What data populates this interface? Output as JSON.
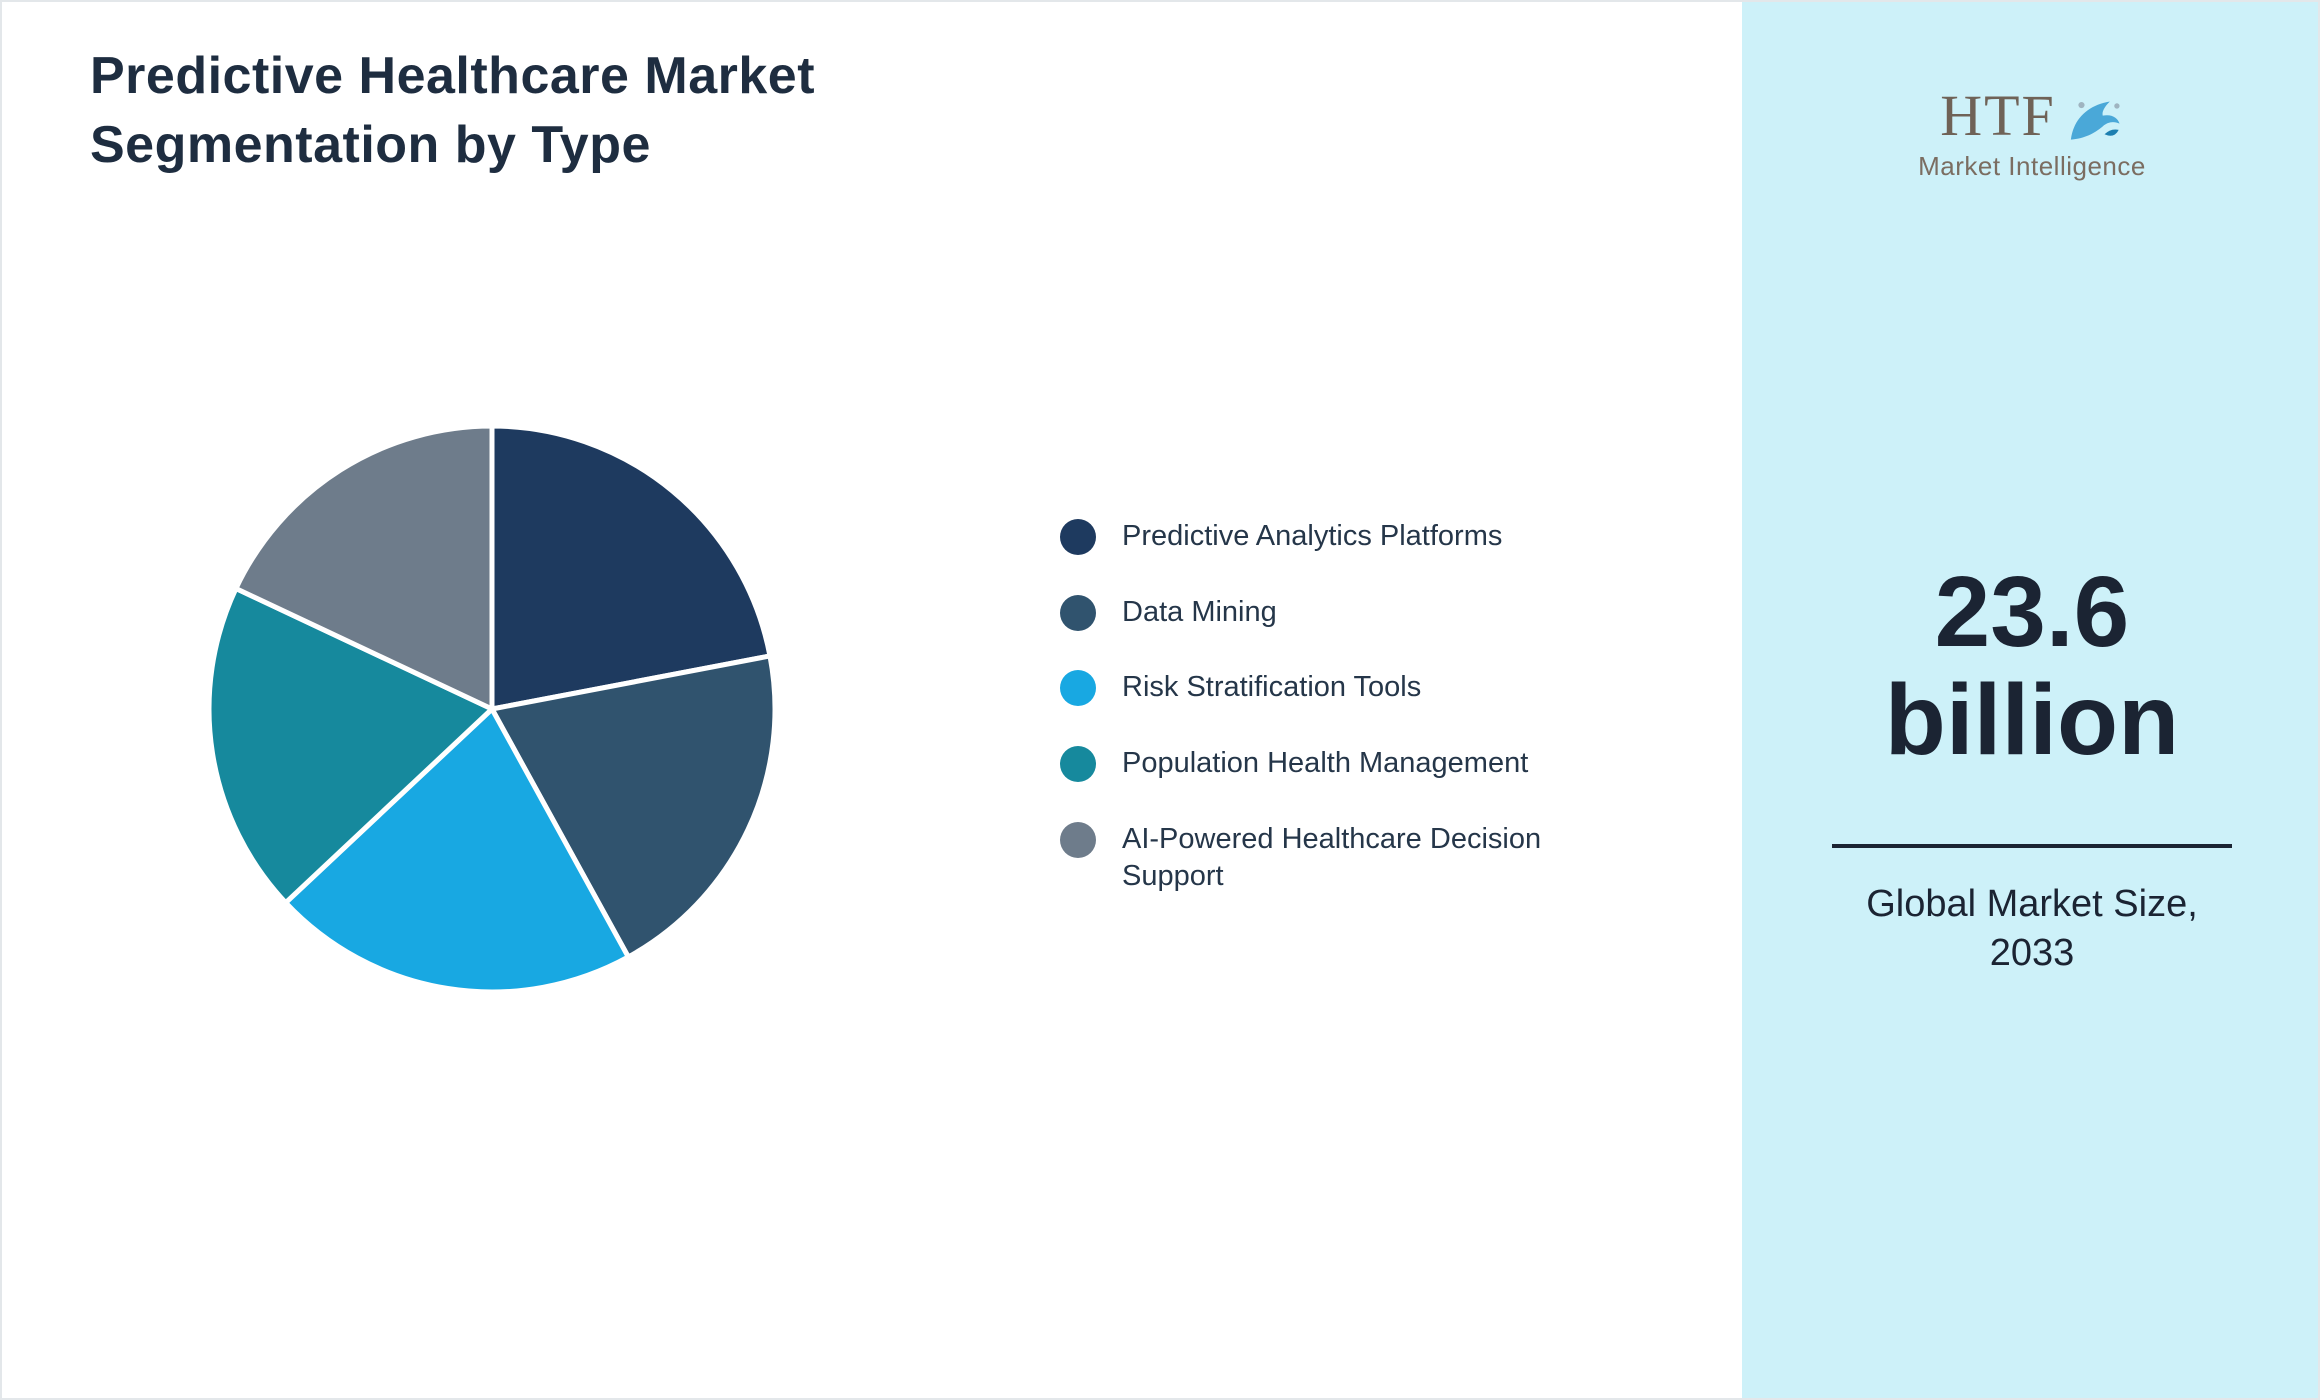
{
  "title": "Predictive Healthcare Market Segmentation by Type",
  "brand": {
    "name": "HTF",
    "tagline": "Market Intelligence"
  },
  "right_panel": {
    "background": "#cdf1f9",
    "value_line1": "23.6",
    "value_line2": "billion",
    "caption_line1": "Global Market Size,",
    "caption_line2": "2033"
  },
  "chart_data": {
    "type": "pie",
    "title": "Predictive Healthcare Market Segmentation by Type",
    "categories": [
      "Predictive Analytics Platforms",
      "Data Mining",
      "Risk Stratification Tools",
      "Population Health Management",
      "AI-Powered Healthcare Decision Support"
    ],
    "values": [
      22,
      20,
      21,
      19,
      18
    ],
    "unit": "percent (estimated, no data labels shown)",
    "colors": [
      "#1e3a5f",
      "#30536e",
      "#18a8e2",
      "#16899d",
      "#6e7c8b"
    ],
    "start_angle_deg": 0,
    "direction": "clockwise",
    "legend_position": "right",
    "slice_gap_color": "#ffffff"
  }
}
